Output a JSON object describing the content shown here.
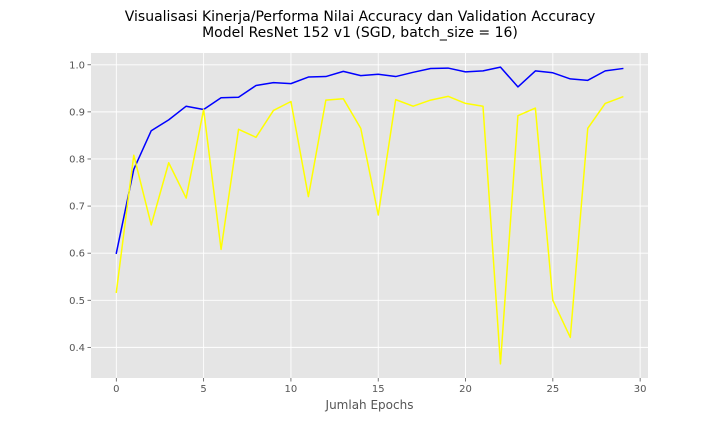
{
  "chart_data": {
    "type": "line",
    "title_line1": "Visualisasi Kinerja/Performa Nilai Accuracy dan Validation Accuracy",
    "title_line2": "Model ResNet 152 v1 (SGD, batch_size = 16)",
    "xlabel": "Jumlah Epochs",
    "ylabel": "",
    "xlim": [
      -1.45,
      30.45
    ],
    "ylim": [
      0.335,
      1.025
    ],
    "xticks": [
      0,
      5,
      10,
      15,
      20,
      25,
      30
    ],
    "yticks": [
      0.4,
      0.5,
      0.6,
      0.7,
      0.8,
      0.9,
      1.0
    ],
    "ytick_labels": [
      "0.4",
      "0.5",
      "0.6",
      "0.7",
      "0.8",
      "0.9",
      "1.0"
    ],
    "grid": true,
    "x": [
      0,
      1,
      2,
      3,
      4,
      5,
      6,
      7,
      8,
      9,
      10,
      11,
      12,
      13,
      14,
      15,
      16,
      17,
      18,
      19,
      20,
      21,
      22,
      23,
      24,
      25,
      26,
      27,
      28,
      29
    ],
    "series": [
      {
        "color": "#0000ff",
        "values": [
          0.6,
          0.778,
          0.86,
          0.883,
          0.912,
          0.905,
          0.93,
          0.931,
          0.956,
          0.962,
          0.96,
          0.974,
          0.975,
          0.986,
          0.977,
          0.98,
          0.975,
          0.984,
          0.992,
          0.993,
          0.985,
          0.987,
          0.995,
          0.953,
          0.987,
          0.983,
          0.97,
          0.967,
          0.987,
          0.992
        ]
      },
      {
        "color": "#ffff00",
        "values": [
          0.517,
          0.808,
          0.66,
          0.792,
          0.717,
          0.905,
          0.608,
          0.863,
          0.846,
          0.903,
          0.922,
          0.72,
          0.925,
          0.928,
          0.865,
          0.681,
          0.926,
          0.912,
          0.925,
          0.933,
          0.918,
          0.912,
          0.365,
          0.892,
          0.908,
          0.5,
          0.421,
          0.865,
          0.918,
          0.932
        ]
      }
    ]
  }
}
